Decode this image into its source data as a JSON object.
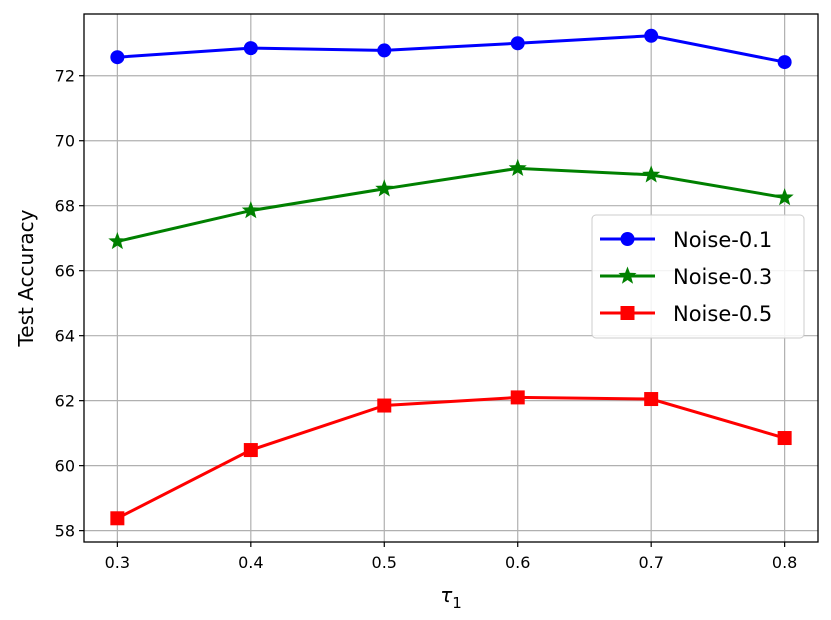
{
  "chart_data": {
    "type": "line",
    "x": [
      0.3,
      0.4,
      0.5,
      0.6,
      0.7,
      0.8
    ],
    "x_tick_labels": [
      "0.3",
      "0.4",
      "0.5",
      "0.6",
      "0.7",
      "0.8"
    ],
    "y_ticks": [
      58,
      60,
      62,
      64,
      66,
      68,
      70,
      72
    ],
    "y_tick_labels": [
      "58",
      "60",
      "62",
      "64",
      "66",
      "68",
      "70",
      "72"
    ],
    "xlim": [
      0.275,
      0.825
    ],
    "ylim": [
      57.65,
      73.9
    ],
    "xlabel": "τ",
    "xlabel_sub": "1",
    "ylabel": "Test Accuracy",
    "grid": true,
    "legend_position": "center-right",
    "series": [
      {
        "name": "Noise-0.1",
        "color": "#0000ff",
        "marker": "circle",
        "values": [
          72.57,
          72.85,
          72.78,
          73.0,
          73.23,
          72.42
        ]
      },
      {
        "name": "Noise-0.3",
        "color": "#008000",
        "marker": "star",
        "values": [
          66.9,
          67.85,
          68.52,
          69.15,
          68.95,
          68.25
        ]
      },
      {
        "name": "Noise-0.5",
        "color": "#ff0000",
        "marker": "square",
        "values": [
          58.38,
          60.48,
          61.85,
          62.1,
          62.05,
          60.85
        ]
      }
    ]
  }
}
